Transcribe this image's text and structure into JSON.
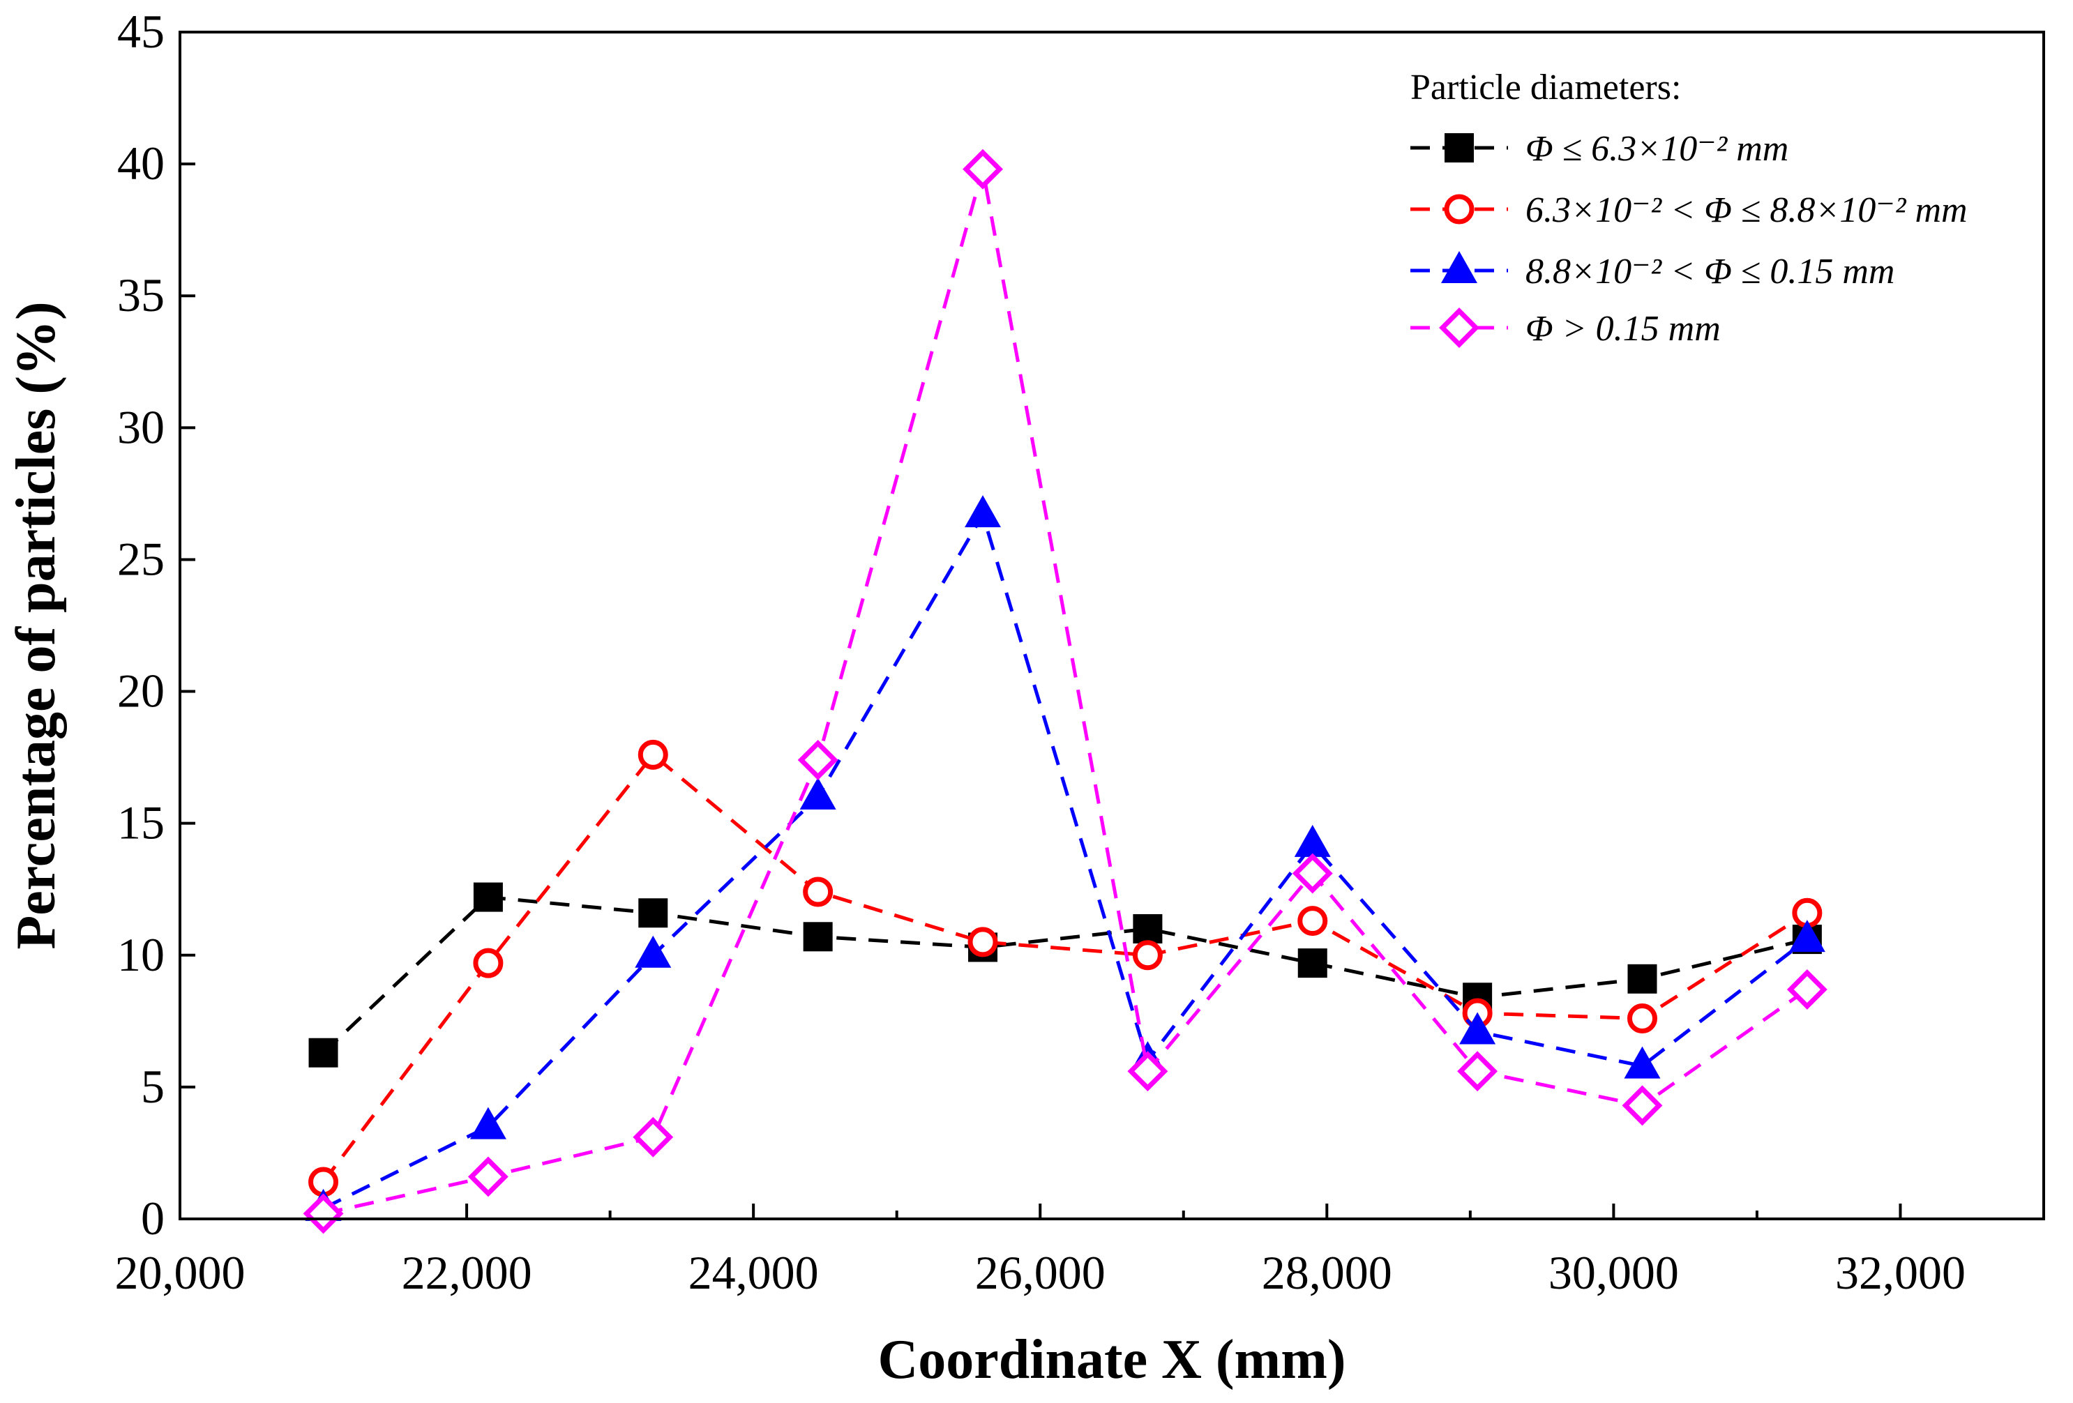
{
  "chart_data": {
    "type": "line",
    "title": "",
    "xlabel": "Coordinate X (mm)",
    "ylabel": "Percentage of particles (%)",
    "xlim": [
      20000,
      33000
    ],
    "ylim": [
      0,
      45
    ],
    "xticks": [
      20000,
      22000,
      24000,
      26000,
      28000,
      30000,
      32000
    ],
    "xtick_labels": [
      "20,000",
      "22,000",
      "24,000",
      "26,000",
      "28,000",
      "30,000",
      "32,000"
    ],
    "yticks": [
      0,
      5,
      10,
      15,
      20,
      25,
      30,
      35,
      40,
      45
    ],
    "ytick_labels": [
      "0",
      "5",
      "10",
      "15",
      "20",
      "25",
      "30",
      "35",
      "40",
      "45"
    ],
    "x": [
      21000,
      22150,
      23300,
      24450,
      25600,
      26750,
      27900,
      29050,
      30200,
      31350
    ],
    "legend": {
      "title": "Particle diameters:",
      "placement": "top-right"
    },
    "series": [
      {
        "name": "Φ ≤ 6.3×10⁻² mm",
        "color": "#000000",
        "marker": "filled-square",
        "values": [
          6.3,
          12.2,
          11.6,
          10.7,
          10.3,
          11.0,
          9.7,
          8.4,
          9.1,
          10.6
        ]
      },
      {
        "name": "6.3×10⁻² < Φ ≤ 8.8×10⁻² mm",
        "color": "#ff0000",
        "marker": "open-circle",
        "values": [
          1.4,
          9.7,
          17.6,
          12.4,
          10.5,
          10.0,
          11.3,
          7.8,
          7.6,
          11.6
        ]
      },
      {
        "name": "8.8×10⁻² < Φ ≤ 0.15 mm",
        "color": "#0000ff",
        "marker": "filled-triangle",
        "values": [
          0.4,
          3.5,
          10.0,
          16.0,
          26.7,
          6.0,
          14.2,
          7.1,
          5.8,
          10.6
        ]
      },
      {
        "name": "Φ > 0.15 mm",
        "color": "#ff00ff",
        "marker": "open-diamond",
        "values": [
          0.2,
          1.6,
          3.1,
          17.4,
          39.8,
          5.6,
          13.1,
          5.6,
          4.3,
          8.7
        ]
      }
    ]
  }
}
